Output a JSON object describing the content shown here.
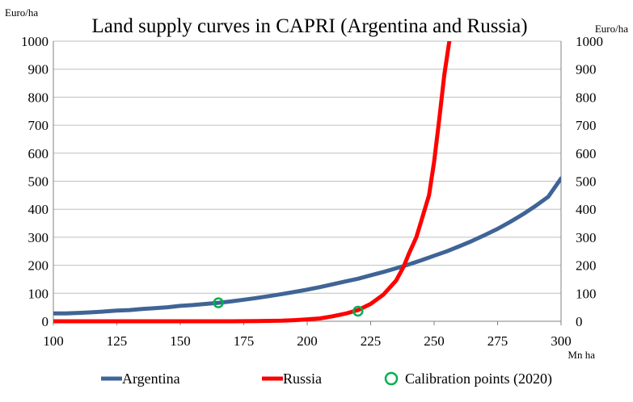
{
  "chart_data": {
    "type": "line",
    "title": "Land supply curves in CAPRI (Argentina and Russia)",
    "y_unit_left": "Euro/ha",
    "y_unit_right": "Euro/ha",
    "x_unit": "Mn ha",
    "xlim": [
      100,
      300
    ],
    "ylim": [
      0,
      1000
    ],
    "x_ticks": [
      "100",
      "125",
      "150",
      "175",
      "200",
      "225",
      "250",
      "275",
      "300"
    ],
    "y_ticks": [
      "0",
      "100",
      "200",
      "300",
      "400",
      "500",
      "600",
      "700",
      "800",
      "900",
      "1000"
    ],
    "grid": true,
    "legend_position": "bottom",
    "series": [
      {
        "name": "Argentina",
        "color": "#3f6496",
        "x": [
          100,
          105,
          110,
          115,
          120,
          125,
          130,
          135,
          140,
          145,
          150,
          155,
          160,
          165,
          170,
          175,
          180,
          185,
          190,
          195,
          200,
          205,
          210,
          215,
          220,
          225,
          230,
          235,
          240,
          245,
          250,
          255,
          260,
          265,
          270,
          275,
          280,
          285,
          290,
          295,
          300
        ],
        "y": [
          28,
          28,
          30,
          32,
          35,
          38,
          40,
          44,
          47,
          50,
          55,
          58,
          62,
          66,
          71,
          77,
          83,
          90,
          97,
          105,
          113,
          122,
          132,
          142,
          152,
          164,
          176,
          189,
          203,
          218,
          234,
          250,
          268,
          287,
          308,
          330,
          355,
          382,
          412,
          445,
          510
        ]
      },
      {
        "name": "Russia",
        "color": "#ff0000",
        "x": [
          100,
          110,
          120,
          130,
          140,
          150,
          160,
          170,
          180,
          190,
          195,
          200,
          205,
          210,
          215,
          220,
          225,
          230,
          235,
          238,
          240,
          243,
          245,
          248,
          250,
          252,
          254,
          256
        ],
        "y": [
          0,
          0,
          0,
          0,
          0,
          0,
          0,
          0,
          1,
          2,
          4,
          7,
          10,
          18,
          27,
          40,
          62,
          95,
          145,
          195,
          240,
          300,
          360,
          450,
          570,
          720,
          880,
          1000
        ]
      }
    ],
    "calibration_points": {
      "name": "Calibration points (2020)",
      "color": "#00b050",
      "points": [
        {
          "x": 165,
          "y": 66
        },
        {
          "x": 220,
          "y": 36
        }
      ]
    }
  }
}
